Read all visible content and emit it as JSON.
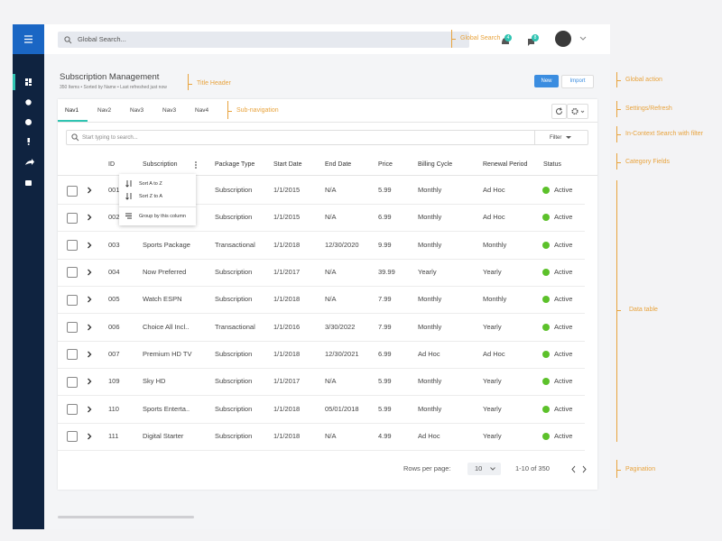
{
  "header": {
    "search_placeholder": "Global Search...",
    "badges": [
      "4",
      "8"
    ]
  },
  "title_header": {
    "title": "Subscription Management",
    "subtitle": "350 Items • Sorted by Name • Last refreshed just now",
    "actions": [
      "New",
      "Import"
    ]
  },
  "sub_navigation": {
    "tabs": [
      "Nav1",
      "Nav2",
      "Nav3",
      "Nav3",
      "Nav4"
    ]
  },
  "search": {
    "placeholder": "Start typing to search...",
    "filter": "Filter"
  },
  "table": {
    "columns": [
      "ID",
      "Subscription",
      "Package Type",
      "Start Date",
      "End Date",
      "Price",
      "Billing Cycle",
      "Renewal Period",
      "Status"
    ],
    "rows": [
      [
        "001",
        null,
        "Subscription",
        "1/1/2015",
        "N/A",
        "5.99",
        "Monthly",
        "Ad Hoc",
        "Active"
      ],
      [
        "002",
        null,
        "Subscription",
        "1/1/2015",
        "N/A",
        "6.99",
        "Monthly",
        "Ad Hoc",
        "Active"
      ],
      [
        "003",
        "Sports Package",
        "Transactional",
        "1/1/2018",
        "12/30/2020",
        "9.99",
        "Monthly",
        "Monthly",
        "Active"
      ],
      [
        "004",
        "Now Preferred",
        "Subscription",
        "1/1/2017",
        "N/A",
        "39.99",
        "Yearly",
        "Yearly",
        "Active"
      ],
      [
        "005",
        "Watch ESPN",
        "Subscription",
        "1/1/2018",
        "N/A",
        "7.99",
        "Monthly",
        "Monthly",
        "Active"
      ],
      [
        "006",
        "Choice All Incl..",
        "Transactional",
        "1/1/2016",
        "3/30/2022",
        "7.99",
        "Monthly",
        "Yearly",
        "Active"
      ],
      [
        "007",
        "Premium HD TV",
        "Subscription",
        "1/1/2018",
        "12/30/2021",
        "6.99",
        "Ad Hoc",
        "Ad Hoc",
        "Active"
      ],
      [
        "109",
        "Sky HD",
        "Subscription",
        "1/1/2017",
        "N/A",
        "5.99",
        "Monthly",
        "Yearly",
        "Active"
      ],
      [
        "110",
        "Sports Enterta..",
        "Subscription",
        "1/1/2018",
        "05/01/2018",
        "5.99",
        "Monthly",
        "Yearly",
        "Active"
      ],
      [
        "111",
        "Digital Starter",
        "Subscription",
        "1/1/2018",
        "N/A",
        "4.99",
        "Ad Hoc",
        "Yearly",
        "Active"
      ]
    ]
  },
  "column_menu": {
    "items": [
      "Sort A to Z",
      "Sort Z to A",
      "Group by this column"
    ]
  },
  "pagination": {
    "rows_per_page_label": "Rows per page:",
    "rows_per_page": "10",
    "range": "1-10 of 350"
  },
  "annotations": [
    "Global Search",
    "Title Header",
    "Sub-navigation",
    "Global action",
    "Settings/Refresh",
    "In-Context Search with filter",
    "Category Fields",
    "Data table",
    "Pagination"
  ]
}
